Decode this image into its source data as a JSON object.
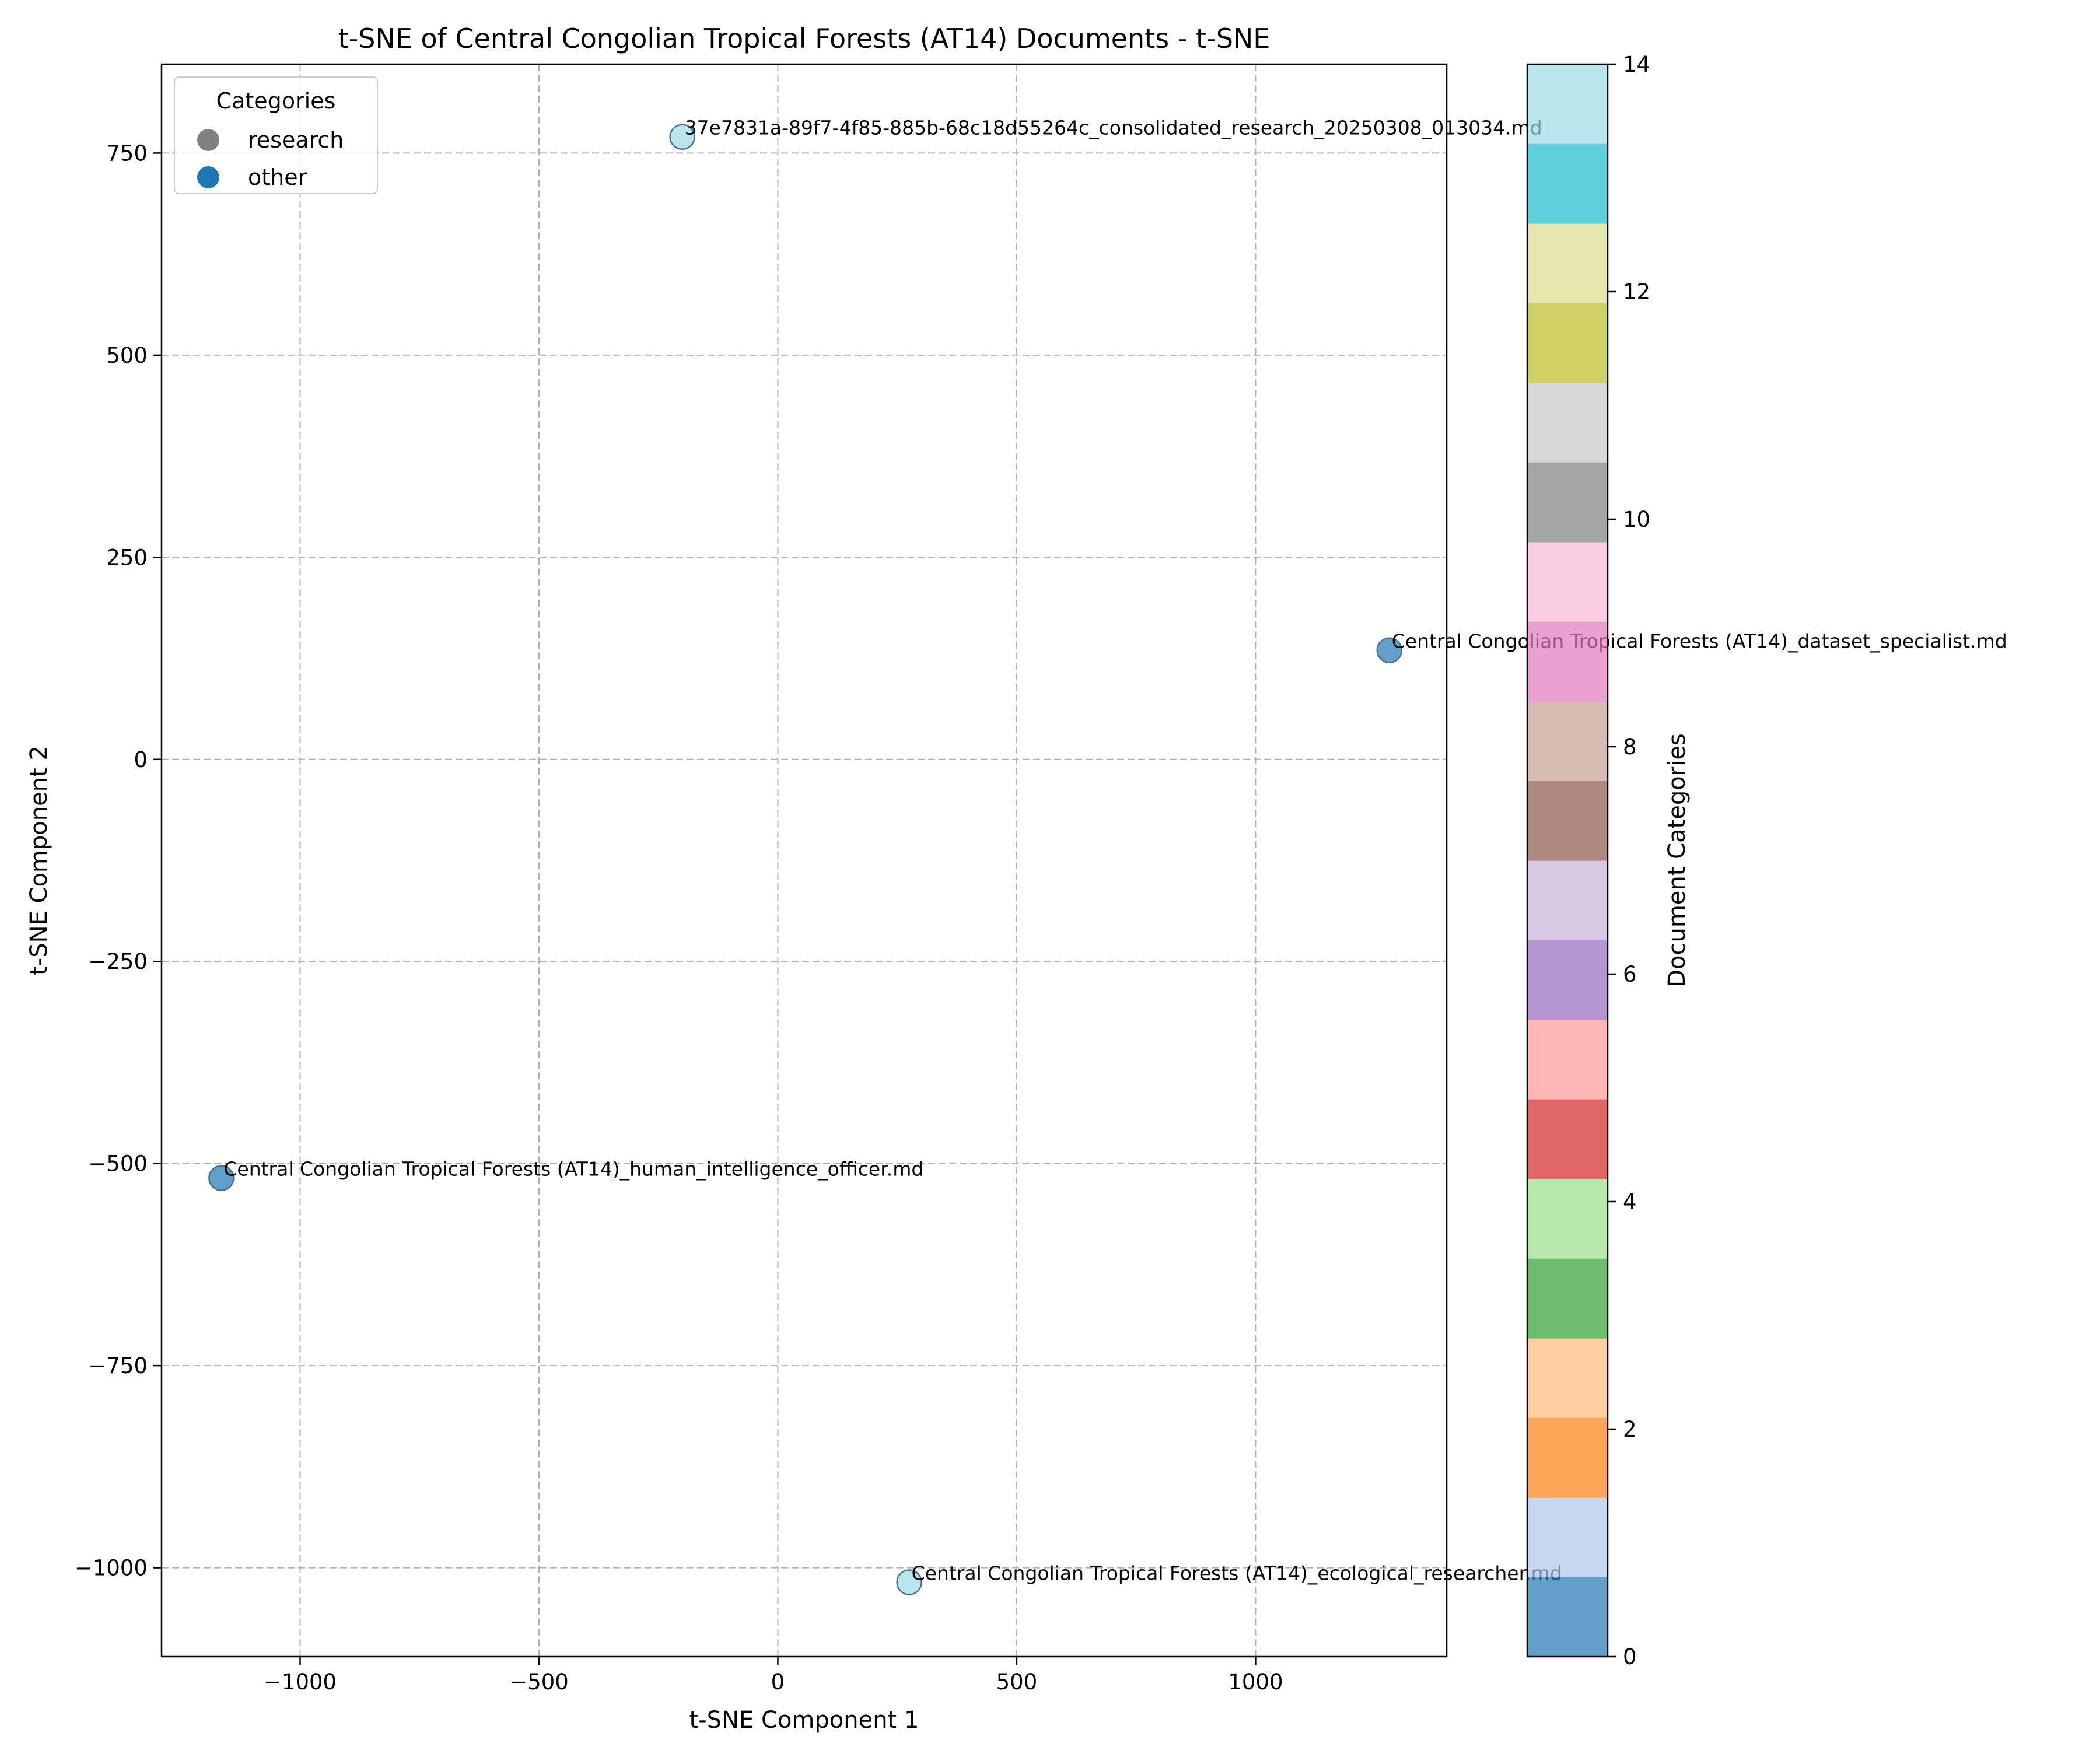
{
  "chart_data": {
    "type": "scatter",
    "title": "t-SNE of Central Congolian Tropical Forests (AT14) Documents - t-SNE",
    "xlabel": "t-SNE Component 1",
    "ylabel": "t-SNE Component 2",
    "xlim": [
      -1290,
      1400
    ],
    "ylim": [
      -1110,
      860
    ],
    "xticks": [
      -1000,
      -500,
      0,
      500,
      1000
    ],
    "yticks": [
      -1000,
      -750,
      -500,
      -250,
      0,
      250,
      500,
      750
    ],
    "grid": true,
    "grid_style": "dashed",
    "legend": {
      "title": "Categories",
      "placement": "top-left",
      "entries": [
        {
          "label": "research",
          "color": "#808080"
        },
        {
          "label": "other",
          "color": "#1f77b4"
        }
      ]
    },
    "points": [
      {
        "x": -200,
        "y": 770,
        "category_value": 14,
        "label": "37e7831a-89f7-4f85-885b-68c18d55264c_consolidated_research_20250308_013034.md"
      },
      {
        "x": 1280,
        "y": 135,
        "category_value": 0,
        "label": "Central Congolian Tropical Forests (AT14)_dataset_specialist.md"
      },
      {
        "x": -1165,
        "y": -518,
        "category_value": 0,
        "label": "Central Congolian Tropical Forests (AT14)_human_intelligence_officer.md"
      },
      {
        "x": 275,
        "y": -1018,
        "category_value": 14,
        "label": "Central Congolian Tropical Forests (AT14)_ecological_researcher.md"
      }
    ],
    "colorbar": {
      "label": "Document Categories",
      "range": [
        0,
        14
      ],
      "ticks": [
        0,
        2,
        4,
        6,
        8,
        10,
        12,
        14
      ],
      "colors": [
        "#1f77b4",
        "#aec7e8",
        "#ff7f0e",
        "#ffbb78",
        "#2ca02c",
        "#98df8a",
        "#d62728",
        "#ff9896",
        "#9467bd",
        "#c5b0d5",
        "#8c564b",
        "#c49c94",
        "#e377c2",
        "#f7b6d2",
        "#7f7f7f",
        "#c7c7c7",
        "#bcbd22",
        "#dbdb8d",
        "#17becf",
        "#9edae5"
      ]
    }
  }
}
